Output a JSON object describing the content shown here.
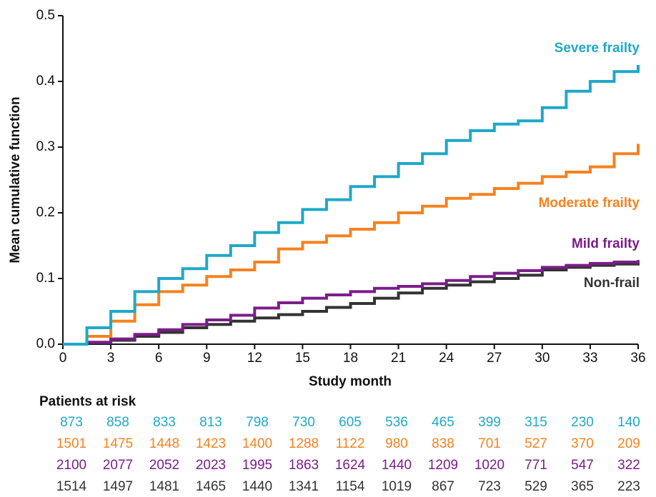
{
  "chart_data": {
    "type": "step",
    "x_label": "Study month",
    "y_label": "Mean cumulative function",
    "xlim": [
      0,
      36
    ],
    "xticks": [
      0,
      3,
      6,
      9,
      12,
      15,
      18,
      21,
      24,
      27,
      30,
      33,
      36
    ],
    "ylim": [
      0,
      0.5
    ],
    "yticks": [
      {
        "value": 0,
        "label": "0.0"
      },
      0.1,
      0.2,
      0.3,
      0.4,
      0.5
    ],
    "x": [
      0,
      1.5,
      3,
      4.5,
      6,
      7.5,
      9,
      10.5,
      12,
      13.5,
      15,
      16.5,
      18,
      19.5,
      21,
      22.5,
      24,
      25.5,
      27,
      28.5,
      30,
      31.5,
      33,
      34.5,
      36
    ],
    "series": [
      {
        "name": "Severe frailty",
        "color": "#1fa8c9",
        "values": [
          0,
          0.025,
          0.05,
          0.08,
          0.1,
          0.115,
          0.135,
          0.15,
          0.17,
          0.185,
          0.205,
          0.22,
          0.24,
          0.255,
          0.275,
          0.29,
          0.31,
          0.325,
          0.335,
          0.34,
          0.36,
          0.385,
          0.4,
          0.415,
          0.425
        ],
        "at_risk": [
          873,
          858,
          833,
          813,
          798,
          730,
          605,
          536,
          465,
          399,
          315,
          230,
          140
        ]
      },
      {
        "name": "Moderate frailty",
        "color": "#f5821f",
        "values": [
          0,
          0.012,
          0.035,
          0.06,
          0.08,
          0.09,
          0.103,
          0.113,
          0.125,
          0.145,
          0.155,
          0.165,
          0.175,
          0.185,
          0.2,
          0.21,
          0.222,
          0.228,
          0.237,
          0.245,
          0.255,
          0.262,
          0.27,
          0.29,
          0.305
        ],
        "at_risk": [
          1501,
          1475,
          1448,
          1423,
          1400,
          1288,
          1122,
          980,
          838,
          701,
          527,
          370,
          209
        ]
      },
      {
        "name": "Mild frailty",
        "color": "#7b1d8a",
        "values": [
          0,
          0.003,
          0.008,
          0.015,
          0.022,
          0.03,
          0.037,
          0.044,
          0.055,
          0.063,
          0.07,
          0.075,
          0.08,
          0.085,
          0.088,
          0.092,
          0.097,
          0.103,
          0.108,
          0.112,
          0.117,
          0.12,
          0.123,
          0.125,
          0.128
        ],
        "at_risk": [
          2100,
          2077,
          2052,
          2023,
          1995,
          1863,
          1624,
          1440,
          1209,
          1020,
          771,
          547,
          322
        ]
      },
      {
        "name": "Non-frail",
        "color": "#333333",
        "values": [
          0,
          0.002,
          0.006,
          0.012,
          0.018,
          0.025,
          0.03,
          0.035,
          0.04,
          0.045,
          0.05,
          0.056,
          0.062,
          0.07,
          0.078,
          0.085,
          0.09,
          0.095,
          0.1,
          0.105,
          0.113,
          0.117,
          0.12,
          0.122,
          0.125
        ],
        "at_risk": [
          1514,
          1497,
          1481,
          1465,
          1440,
          1341,
          1154,
          1019,
          867,
          723,
          529,
          365,
          223
        ]
      }
    ],
    "risk_table_title": "Patients at risk"
  }
}
